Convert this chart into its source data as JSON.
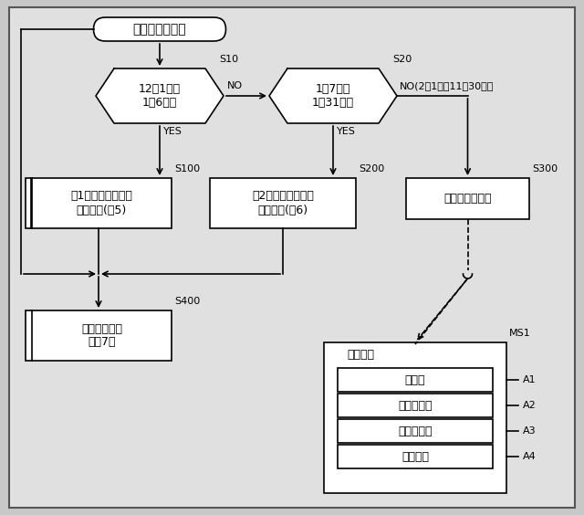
{
  "title": "端末装置の処理",
  "diamond1_label": "12月1日～\n1月6日？",
  "diamond2_label": "1月7日～\n1月31日？",
  "s10": "S10",
  "s20": "S20",
  "s100": "S100",
  "s200": "S200",
  "s300": "S300",
  "s400": "S400",
  "ms1": "MS1",
  "no1": "NO",
  "no2": "NO(2月1日～11月30日）",
  "yes1": "YES",
  "yes2": "YES",
  "box1_label": "第1のメニュー画面\n表示処理(図5)",
  "box2_label": "第2のメニュー画面\n表示処理(図6)",
  "box3_label": "デフォルト表示",
  "box4_label": "選択監視処理\n（図7）",
  "menu_title": "メニュー",
  "menu_items": [
    "年賀状",
    "喪中はがき",
    "寒中見舞い",
    "スキャン"
  ],
  "menu_labels": [
    "A1",
    "A2",
    "A3",
    "A4"
  ],
  "bg_color": "#c8c8c8",
  "inner_bg": "#e0e0e0",
  "lw": 1.2,
  "font_size_main": 9,
  "font_size_label": 8,
  "font_size_title": 10
}
